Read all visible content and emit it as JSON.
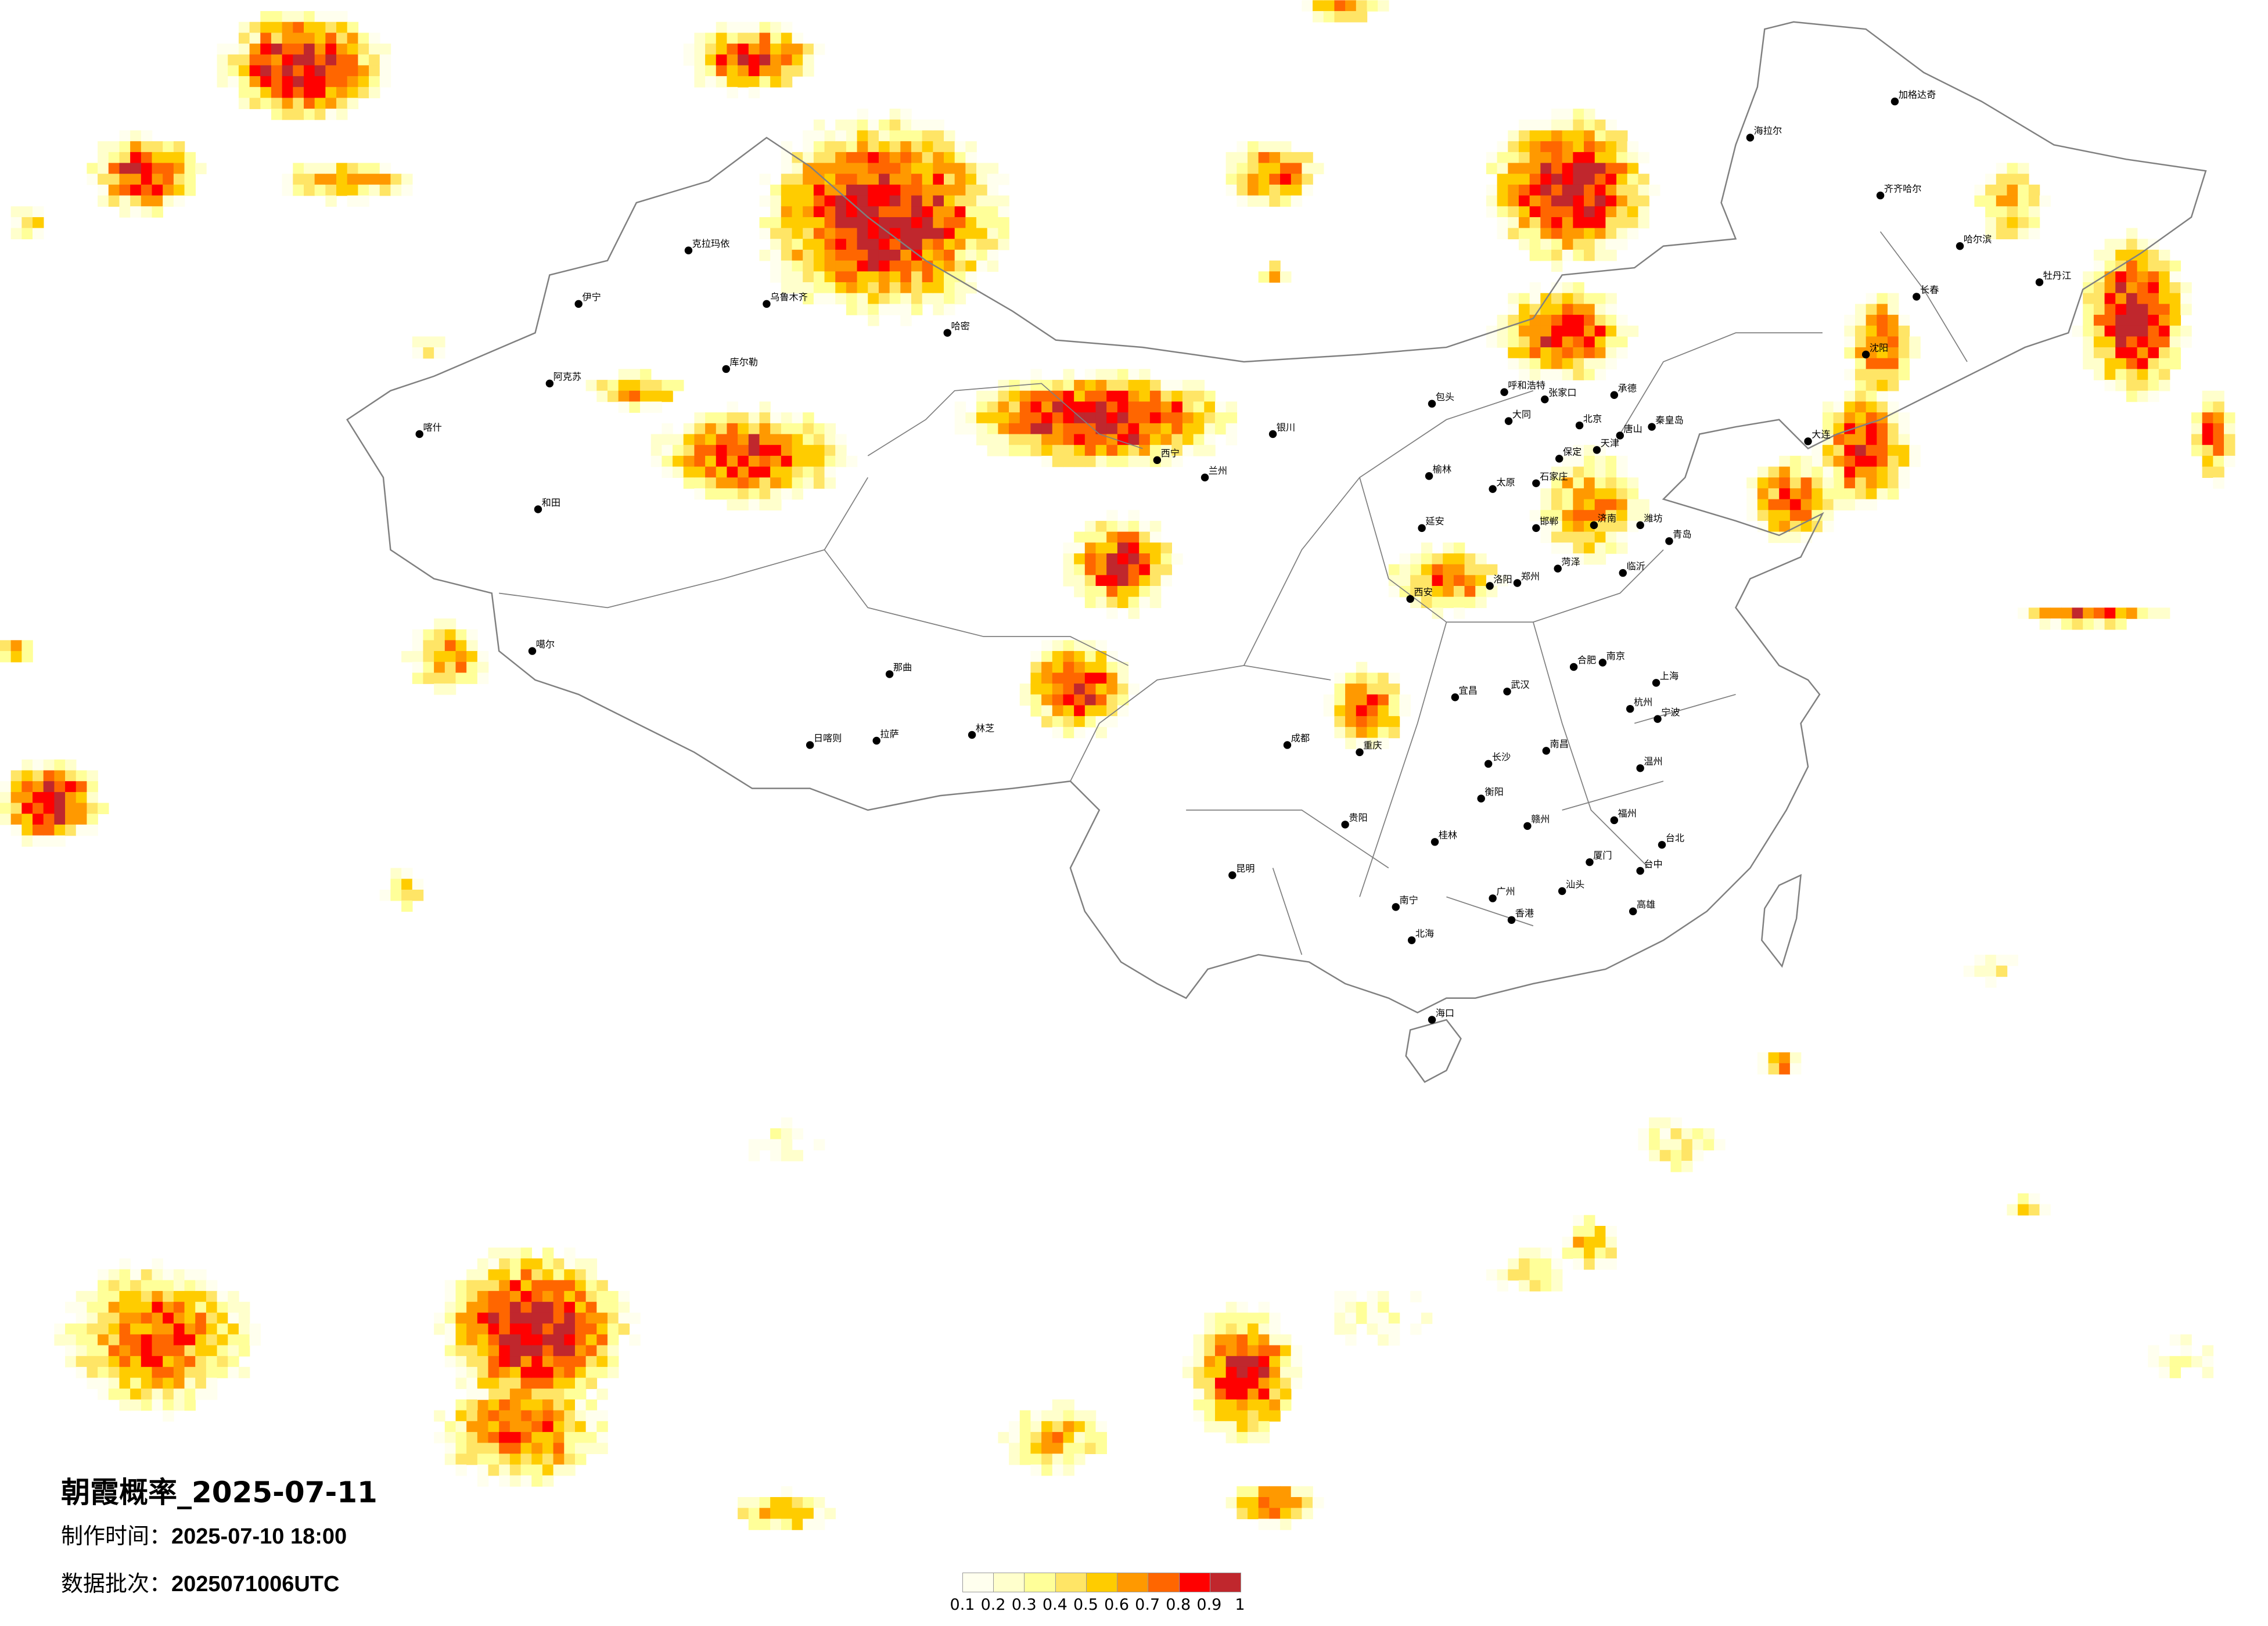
{
  "title": "朝霞概率_2025-07-11",
  "production_time": {
    "label": "制作时间：",
    "value": "2025-07-10 18:00"
  },
  "data_batch": {
    "label": "数据批次：",
    "value": "2025071006UTC"
  },
  "legend": {
    "ticks": [
      "0.1",
      "0.2",
      "0.3",
      "0.4",
      "0.5",
      "0.6",
      "0.7",
      "0.8",
      "0.9",
      "1"
    ],
    "colors": [
      "#FFFFEE",
      "#FFFFCC",
      "#FFFF99",
      "#FFE566",
      "#FFCC00",
      "#FF9900",
      "#FF6600",
      "#FF0000",
      "#C0272D"
    ]
  },
  "map": {
    "border_color": "#808080",
    "city_dot_color": "#000000",
    "cities": [
      "北京",
      "天津",
      "石家庄",
      "太原",
      "济南",
      "呼和浩特",
      "包头",
      "大同",
      "张家口",
      "承德",
      "唐山",
      "秦皇岛",
      "保定",
      "邯郸",
      "郑州",
      "洛阳",
      "西安",
      "青岛",
      "延安",
      "榆林",
      "临沂",
      "菏泽",
      "潍坊",
      "上海",
      "南京",
      "合肥",
      "杭州",
      "武汉",
      "长沙",
      "南昌",
      "福州",
      "厦门",
      "广州",
      "香港",
      "南宁",
      "桂林",
      "台北",
      "台中",
      "高雄",
      "宁波",
      "温州",
      "赣州",
      "衡阳",
      "宜昌",
      "北海",
      "汕头",
      "乌鲁木齐",
      "喀什",
      "和田",
      "伊宁",
      "阿克苏",
      "库尔勒",
      "哈密",
      "克拉玛依",
      "拉萨",
      "日喀则",
      "林芝",
      "那曲",
      "噶尔",
      "西宁",
      "兰州",
      "银川",
      "成都",
      "重庆",
      "昆明",
      "贵阳",
      "哈尔滨",
      "长春",
      "沈阳",
      "大连",
      "齐齐哈尔",
      "海拉尔",
      "加格达奇",
      "牡丹江",
      "海口"
    ]
  }
}
